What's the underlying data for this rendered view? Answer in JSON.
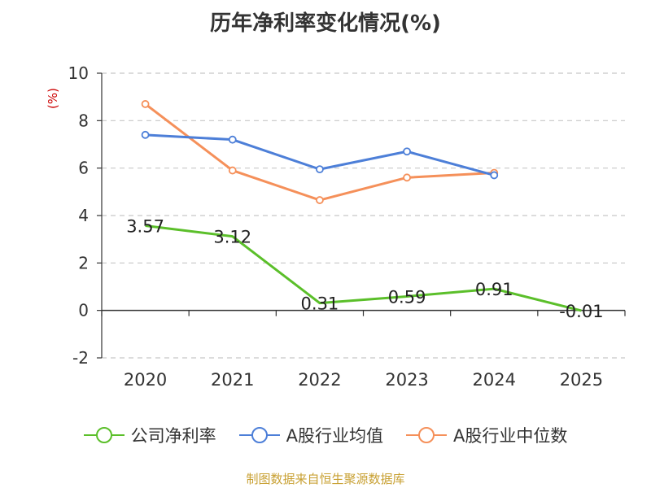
{
  "title": "历年净利率变化情况(%)",
  "y_unit": "(%)",
  "source": "制图数据来自恒生聚源数据库",
  "chart_data": {
    "type": "line",
    "title": "历年净利率变化情况(%)",
    "xlabel": "",
    "ylabel": "(%)",
    "categories": [
      "2020",
      "2021",
      "2022",
      "2023",
      "2024",
      "2025"
    ],
    "ylim": [
      -2,
      10
    ],
    "yticks": [
      -2,
      0,
      2,
      4,
      6,
      8,
      10
    ],
    "grid": true,
    "legend_position": "bottom",
    "series": [
      {
        "name": "公司净利率",
        "color": "#5bbf2a",
        "values": [
          3.57,
          3.12,
          0.31,
          0.59,
          0.91,
          -0.01
        ],
        "labels": [
          "3.57",
          "3.12",
          "0.31",
          "0.59",
          "0.91",
          "-0.01"
        ],
        "show_markers": false
      },
      {
        "name": "A股行业均值",
        "color": "#4d7fd8",
        "values": [
          7.4,
          7.2,
          5.95,
          6.7,
          5.7,
          null
        ],
        "show_markers": true
      },
      {
        "name": "A股行业中位数",
        "color": "#f5905a",
        "values": [
          8.7,
          5.9,
          4.65,
          5.6,
          5.8,
          null
        ],
        "show_markers": true
      }
    ]
  }
}
